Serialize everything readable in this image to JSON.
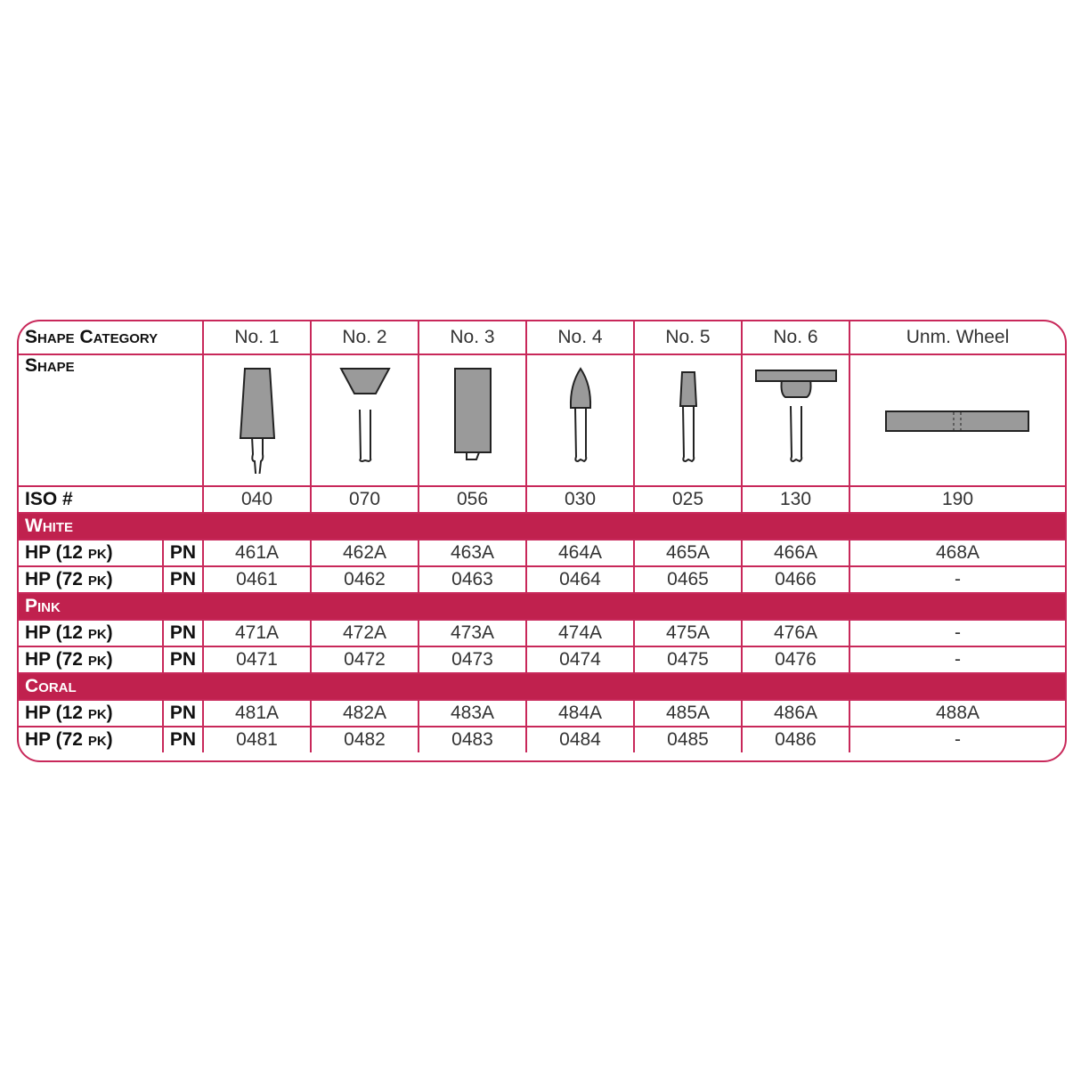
{
  "header": {
    "label": "Shape Category",
    "columns": [
      "No. 1",
      "No. 2",
      "No. 3",
      "No. 4",
      "No. 5",
      "No. 6",
      "Unm. Wheel"
    ]
  },
  "shape_row": {
    "label": "Shape",
    "icons": [
      "tapered-cylinder-point-icon",
      "inverted-cone-point-icon",
      "cylinder-point-icon",
      "flame-point-icon",
      "small-taper-point-icon",
      "cup-wheel-point-icon",
      "unmounted-wheel-icon"
    ]
  },
  "iso_row": {
    "label": "ISO #",
    "values": [
      "040",
      "070",
      "056",
      "030",
      "025",
      "130",
      "190"
    ]
  },
  "groups": [
    {
      "name": "White",
      "rows": [
        {
          "label": "HP (12 pk)",
          "pn": "PN",
          "values": [
            "461A",
            "462A",
            "463A",
            "464A",
            "465A",
            "466A",
            "468A"
          ]
        },
        {
          "label": "HP (72 pk)",
          "pn": "PN",
          "values": [
            "0461",
            "0462",
            "0463",
            "0464",
            "0465",
            "0466",
            "-"
          ]
        }
      ]
    },
    {
      "name": "Pink",
      "rows": [
        {
          "label": "HP (12 pk)",
          "pn": "PN",
          "values": [
            "471A",
            "472A",
            "473A",
            "474A",
            "475A",
            "476A",
            "-"
          ]
        },
        {
          "label": "HP (72 pk)",
          "pn": "PN",
          "values": [
            "0471",
            "0472",
            "0473",
            "0474",
            "0475",
            "0476",
            "-"
          ]
        }
      ]
    },
    {
      "name": "Coral",
      "rows": [
        {
          "label": "HP (12 pk)",
          "pn": "PN",
          "values": [
            "481A",
            "482A",
            "483A",
            "484A",
            "485A",
            "486A",
            "488A"
          ]
        },
        {
          "label": "HP (72 pk)",
          "pn": "PN",
          "values": [
            "0481",
            "0482",
            "0483",
            "0484",
            "0485",
            "0486",
            "-"
          ]
        }
      ]
    }
  ],
  "colors": {
    "accent": "#c0214e",
    "border": "#c8285a",
    "shape_fill": "#9a9a9a"
  }
}
